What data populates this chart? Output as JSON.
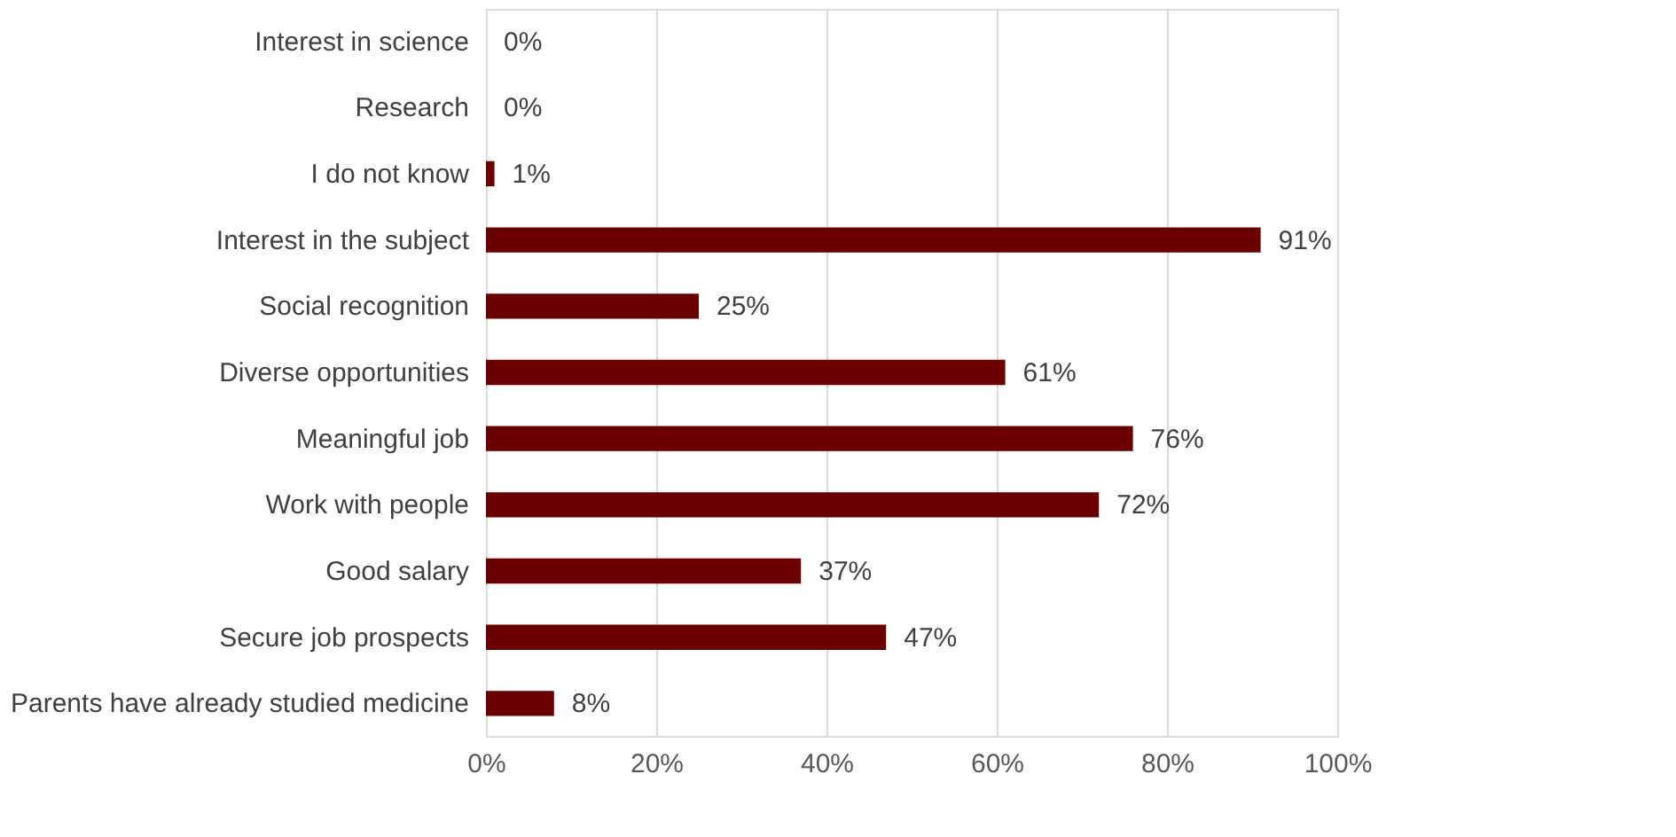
{
  "chart_data": {
    "type": "bar",
    "orientation": "horizontal",
    "categories": [
      "Interest in science",
      "Research",
      "I do not know",
      "Interest in the subject",
      "Social recognition",
      "Diverse opportunities",
      "Meaningful job",
      "Work with people",
      "Good salary",
      "Secure job prospects",
      "Parents have already studied medicine"
    ],
    "values": [
      0,
      0,
      1,
      91,
      25,
      61,
      76,
      72,
      37,
      47,
      8
    ],
    "value_labels": [
      "0%",
      "0%",
      "1%",
      "91%",
      "25%",
      "61%",
      "76%",
      "72%",
      "37%",
      "47%",
      "8%"
    ],
    "color": "#6b0000",
    "xlim": [
      0,
      100
    ],
    "xticks": [
      {
        "value": 0,
        "label": "0%"
      },
      {
        "value": 20,
        "label": "20%"
      },
      {
        "value": 40,
        "label": "40%"
      },
      {
        "value": 60,
        "label": "60%"
      },
      {
        "value": 80,
        "label": "80%"
      },
      {
        "value": 100,
        "label": "100%"
      }
    ],
    "grid": "x"
  }
}
